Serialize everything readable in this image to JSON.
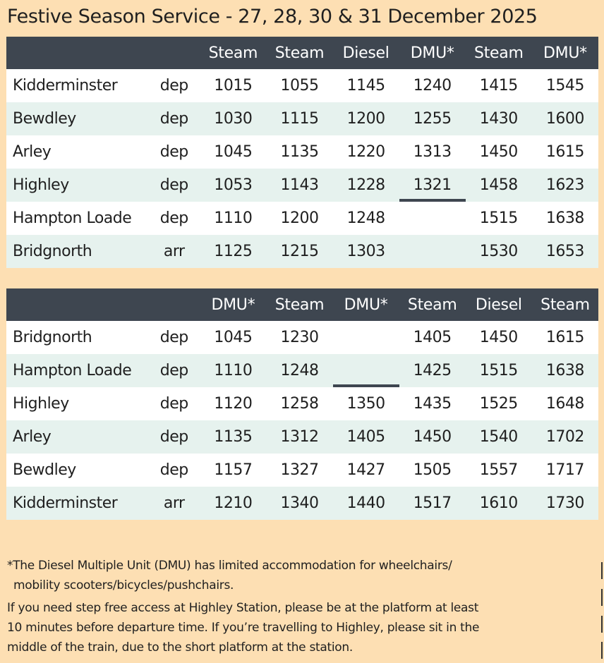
{
  "title": "Festive Season Service - 27, 28, 30 & 31 December 2025",
  "timetables": [
    {
      "headers": [
        "",
        "",
        "Steam",
        "Steam",
        "Diesel",
        "DMU*",
        "Steam",
        "DMU*"
      ],
      "rows": [
        {
          "station": "Kidderminster",
          "da": "dep",
          "times": [
            "1015",
            "1055",
            "1145",
            "1240",
            "1415",
            "1545"
          ]
        },
        {
          "station": "Bewdley",
          "da": "dep",
          "times": [
            "1030",
            "1115",
            "1200",
            "1255",
            "1430",
            "1600"
          ]
        },
        {
          "station": "Arley",
          "da": "dep",
          "times": [
            "1045",
            "1135",
            "1220",
            "1313",
            "1450",
            "1615"
          ]
        },
        {
          "station": "Highley",
          "da": "dep",
          "times": [
            "1053",
            "1143",
            "1228",
            "1321",
            "1458",
            "1623"
          ]
        },
        {
          "station": "Hampton Loade",
          "da": "dep",
          "times": [
            "1110",
            "1200",
            "1248",
            "",
            "1515",
            "1638"
          ]
        },
        {
          "station": "Bridgnorth",
          "da": "arr",
          "times": [
            "1125",
            "1215",
            "1303",
            "",
            "1530",
            "1653"
          ]
        }
      ]
    },
    {
      "headers": [
        "",
        "",
        "DMU*",
        "Steam",
        "DMU*",
        "Steam",
        "Diesel",
        "Steam"
      ],
      "rows": [
        {
          "station": "Bridgnorth",
          "da": "dep",
          "times": [
            "1045",
            "1230",
            "",
            "1405",
            "1450",
            "1615"
          ]
        },
        {
          "station": "Hampton Loade",
          "da": "dep",
          "times": [
            "1110",
            "1248",
            "",
            "1425",
            "1515",
            "1638"
          ]
        },
        {
          "station": "Highley",
          "da": "dep",
          "times": [
            "1120",
            "1258",
            "1350",
            "1435",
            "1525",
            "1648"
          ]
        },
        {
          "station": "Arley",
          "da": "dep",
          "times": [
            "1135",
            "1312",
            "1405",
            "1450",
            "1540",
            "1702"
          ]
        },
        {
          "station": "Bewdley",
          "da": "dep",
          "times": [
            "1157",
            "1327",
            "1427",
            "1505",
            "1557",
            "1717"
          ]
        },
        {
          "station": "Kidderminster",
          "da": "arr",
          "times": [
            "1210",
            "1340",
            "1440",
            "1517",
            "1610",
            "1730"
          ]
        }
      ]
    }
  ],
  "notes": {
    "dmu_line1": "*The Diesel Multiple Unit (DMU) has limited accommodation for wheelchairs/",
    "dmu_line2": "mobility scooters/bicycles/pushchairs.",
    "step_line1": "If you need step free access at Highley Station, please be at the platform at least",
    "step_line2": "10 minutes before departure time. If you’re travelling to Highley, please sit in the",
    "step_line3": "middle of the train, due to the short platform at the station."
  },
  "colors": {
    "background": "#fddfb3",
    "header": "#3e4650",
    "row_light": "#ffffff",
    "row_tint": "#e6f2ee"
  }
}
